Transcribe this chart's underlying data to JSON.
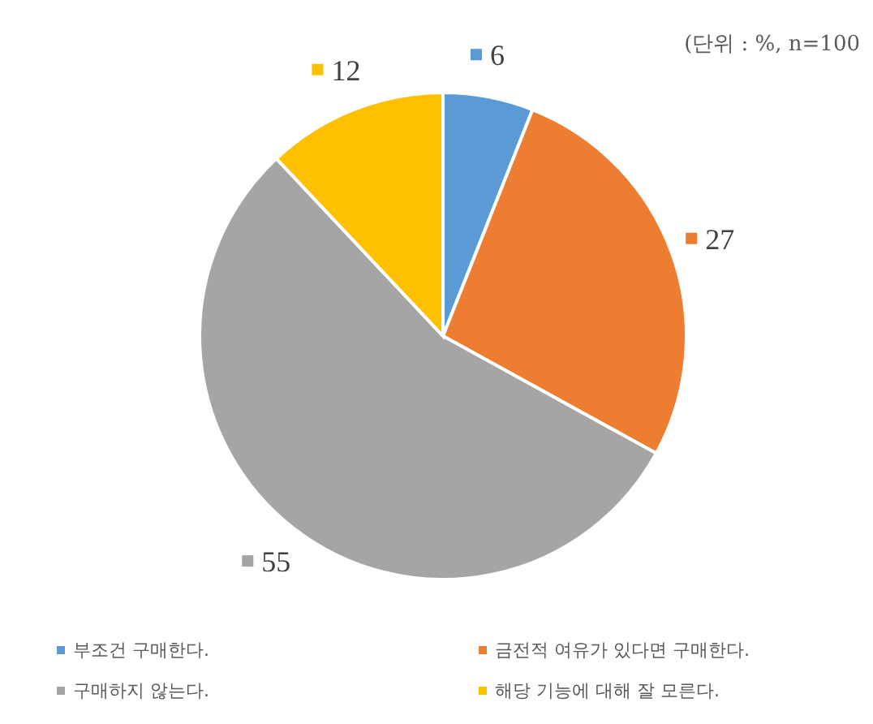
{
  "chart_data": {
    "type": "pie",
    "subtitle": "(단위 : %, n=100",
    "categories": [
      "부조건 구매한다.",
      "금전적 여유가 있다면 구매한다.",
      "구매하지 않는다.",
      "해당 기능에 대해 잘 모른다."
    ],
    "values": [
      6,
      27,
      55,
      12
    ],
    "colors": [
      "#5b9bd5",
      "#ed7d31",
      "#a5a5a5",
      "#ffc000"
    ],
    "data_labels": true,
    "legend": "bottom"
  }
}
